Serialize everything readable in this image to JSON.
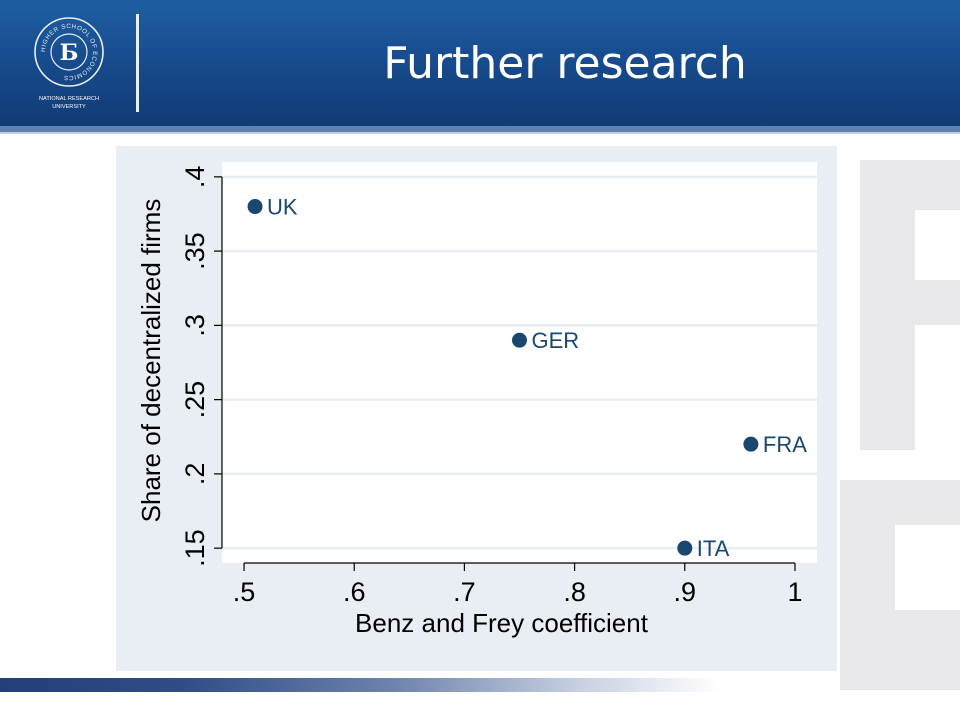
{
  "slide": {
    "title": "Further research",
    "logo": {
      "ring_text": "HIGHER SCHOOL OF ECONOMICS",
      "caption_line1": "NATIONAL RESEARCH",
      "caption_line2": "UNIVERSITY",
      "monogram": "Б"
    }
  },
  "colors": {
    "header_blue": "#1a5296",
    "marker": "#1a4770",
    "plot_panel": "#e9eef4",
    "plot_area": "#ffffff",
    "grid": "#e9eef4"
  },
  "chart_data": {
    "type": "scatter",
    "xlabel": "Benz and Frey coefficient",
    "ylabel": "Share of decentralized firms",
    "xlim": [
      0.48,
      1.02
    ],
    "ylim": [
      0.14,
      0.41
    ],
    "x_ticks": [
      ".5",
      ".6",
      ".7",
      ".8",
      ".9",
      "1"
    ],
    "x_tick_values": [
      0.5,
      0.6,
      0.7,
      0.8,
      0.9,
      1.0
    ],
    "y_ticks": [
      ".15",
      ".2",
      ".25",
      ".3",
      ".35",
      ".4"
    ],
    "y_tick_values": [
      0.15,
      0.2,
      0.25,
      0.3,
      0.35,
      0.4
    ],
    "grid": true,
    "points": [
      {
        "label": "UK",
        "x": 0.51,
        "y": 0.38
      },
      {
        "label": "GER",
        "x": 0.75,
        "y": 0.29
      },
      {
        "label": "FRA",
        "x": 0.96,
        "y": 0.22
      },
      {
        "label": "ITA",
        "x": 0.9,
        "y": 0.15
      }
    ]
  }
}
